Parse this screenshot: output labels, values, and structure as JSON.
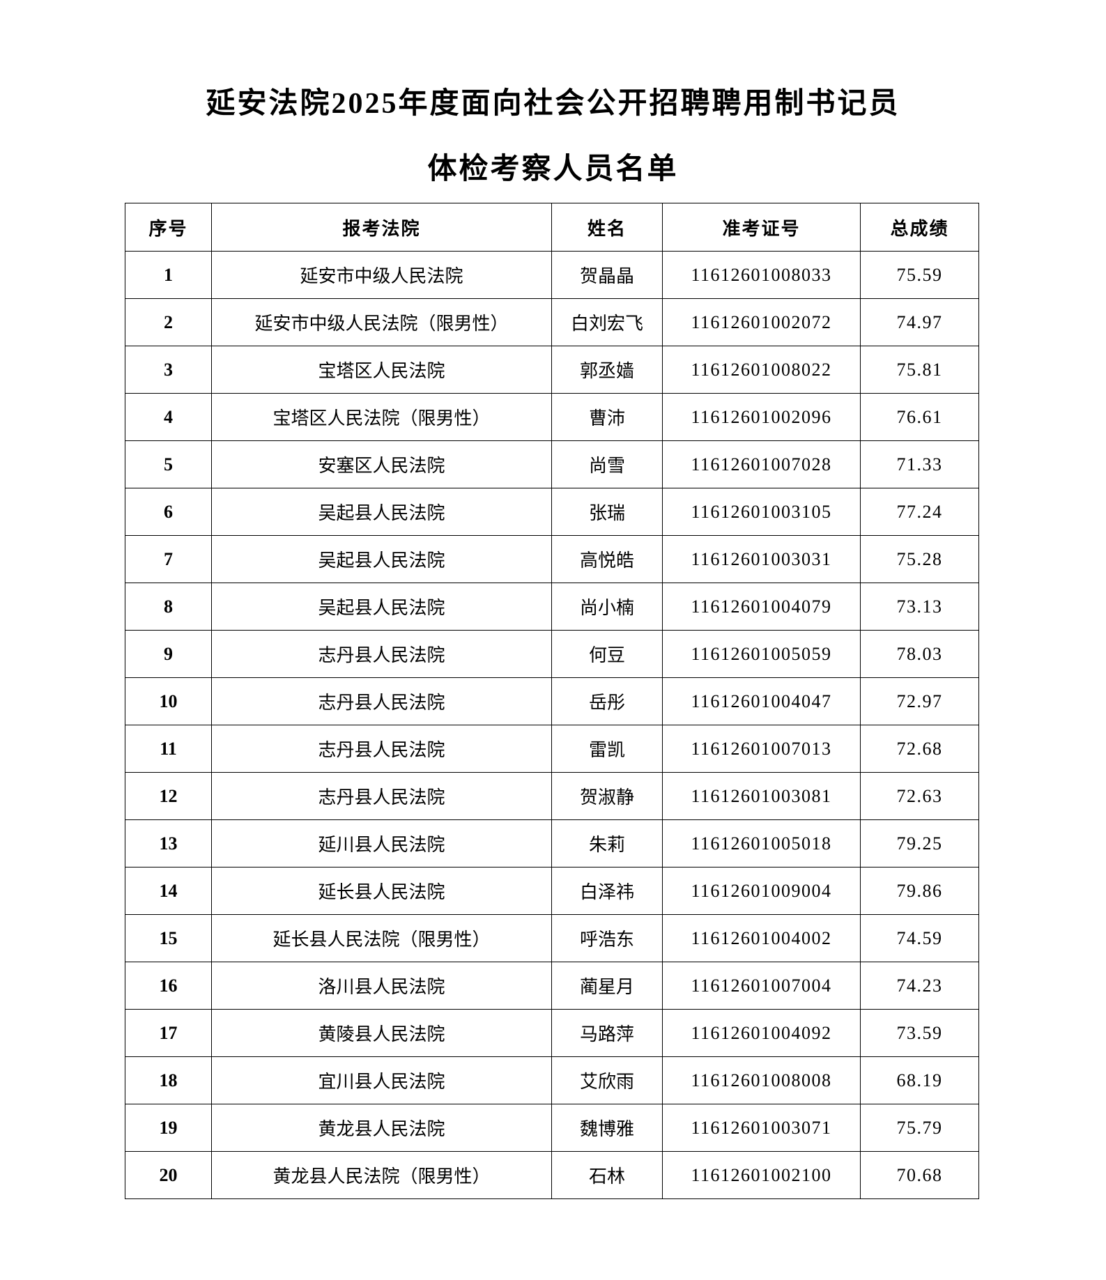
{
  "title": {
    "line1": "延安法院2025年度面向社会公开招聘聘用制书记员",
    "line2": "体检考察人员名单"
  },
  "table": {
    "headers": [
      "序号",
      "报考法院",
      "姓名",
      "准考证号",
      "总成绩"
    ],
    "rows": [
      [
        "1",
        "延安市中级人民法院",
        "贺晶晶",
        "11612601008033",
        "75.59"
      ],
      [
        "2",
        "延安市中级人民法院（限男性）",
        "白刘宏飞",
        "11612601002072",
        "74.97"
      ],
      [
        "3",
        "宝塔区人民法院",
        "郭丞嫱",
        "11612601008022",
        "75.81"
      ],
      [
        "4",
        "宝塔区人民法院（限男性）",
        "曹沛",
        "11612601002096",
        "76.61"
      ],
      [
        "5",
        "安塞区人民法院",
        "尚雪",
        "11612601007028",
        "71.33"
      ],
      [
        "6",
        "吴起县人民法院",
        "张瑞",
        "11612601003105",
        "77.24"
      ],
      [
        "7",
        "吴起县人民法院",
        "高悦皓",
        "11612601003031",
        "75.28"
      ],
      [
        "8",
        "吴起县人民法院",
        "尚小楠",
        "11612601004079",
        "73.13"
      ],
      [
        "9",
        "志丹县人民法院",
        "何豆",
        "11612601005059",
        "78.03"
      ],
      [
        "10",
        "志丹县人民法院",
        "岳彤",
        "11612601004047",
        "72.97"
      ],
      [
        "11",
        "志丹县人民法院",
        "雷凯",
        "11612601007013",
        "72.68"
      ],
      [
        "12",
        "志丹县人民法院",
        "贺淑静",
        "11612601003081",
        "72.63"
      ],
      [
        "13",
        "延川县人民法院",
        "朱莉",
        "11612601005018",
        "79.25"
      ],
      [
        "14",
        "延长县人民法院",
        "白泽祎",
        "11612601009004",
        "79.86"
      ],
      [
        "15",
        "延长县人民法院（限男性）",
        "呼浩东",
        "11612601004002",
        "74.59"
      ],
      [
        "16",
        "洛川县人民法院",
        "蔺星月",
        "11612601007004",
        "74.23"
      ],
      [
        "17",
        "黄陵县人民法院",
        "马路萍",
        "11612601004092",
        "73.59"
      ],
      [
        "18",
        "宜川县人民法院",
        "艾欣雨",
        "11612601008008",
        "68.19"
      ],
      [
        "19",
        "黄龙县人民法院",
        "魏博雅",
        "11612601003071",
        "75.79"
      ],
      [
        "20",
        "黄龙县人民法院（限男性）",
        "石林",
        "11612601002100",
        "70.68"
      ]
    ]
  }
}
